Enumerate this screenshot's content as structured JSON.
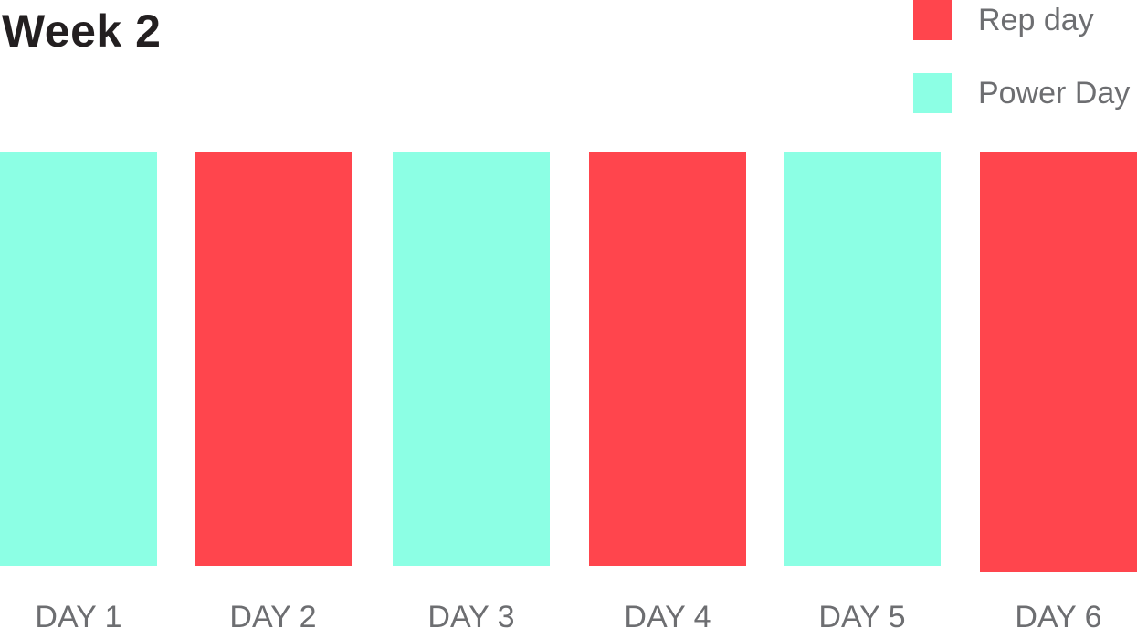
{
  "title": "Week 2",
  "colors": {
    "rep": "#ff454d",
    "power": "#8cffe4"
  },
  "legend": [
    {
      "label": "Rep day",
      "type": "rep"
    },
    {
      "label": "Power Day",
      "type": "power"
    }
  ],
  "days": [
    {
      "label": "DAY 1",
      "type": "power"
    },
    {
      "label": "DAY 2",
      "type": "rep"
    },
    {
      "label": "DAY 3",
      "type": "power"
    },
    {
      "label": "DAY 4",
      "type": "rep"
    },
    {
      "label": "DAY 5",
      "type": "power"
    },
    {
      "label": "DAY 6",
      "type": "rep"
    }
  ]
}
